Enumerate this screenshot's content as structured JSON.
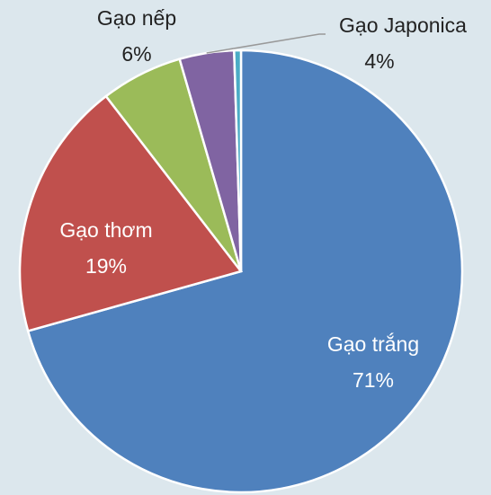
{
  "chart_data": {
    "type": "pie",
    "categories": [
      "Gạo trắng",
      "Gạo thơm",
      "Gạo nếp",
      "Gạo Japonica",
      null
    ],
    "values": [
      71,
      19,
      6,
      4,
      0.5
    ],
    "value_labels": [
      "71%",
      "19%",
      "6%",
      "4%",
      null
    ],
    "colors": [
      "#4f81bd",
      "#c0504d",
      "#9bbb59",
      "#8064a2",
      "#4bacc6"
    ]
  }
}
